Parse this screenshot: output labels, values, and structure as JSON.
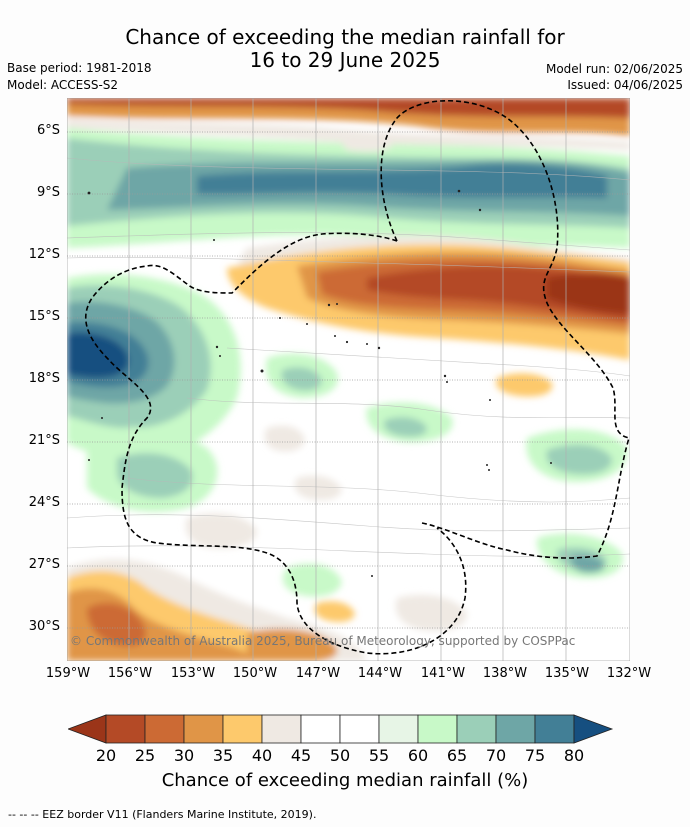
{
  "title": {
    "line1": "Chance of exceeding the median rainfall for",
    "line2": "16 to 29 June 2025"
  },
  "meta": {
    "base_period": "Base period: 1981-2018",
    "model": "Model: ACCESS-S2",
    "model_run": "Model run: 02/06/2025",
    "issued": "Issued: 04/06/2025"
  },
  "map": {
    "lat_labels": [
      "6°S",
      "9°S",
      "12°S",
      "15°S",
      "18°S",
      "21°S",
      "24°S",
      "27°S",
      "30°S"
    ],
    "lon_labels": [
      "159°W",
      "156°W",
      "153°W",
      "150°W",
      "147°W",
      "144°W",
      "141°W",
      "138°W",
      "135°W",
      "132°W"
    ],
    "credit": "© Commonwealth of Australia 2025, Bureau of Meteorology, supported by COSPPac"
  },
  "colorbar": {
    "ticks": [
      "20",
      "25",
      "30",
      "35",
      "40",
      "45",
      "50",
      "55",
      "60",
      "65",
      "70",
      "75",
      "80"
    ],
    "colors": [
      "#9b3519",
      "#b44a26",
      "#cc6a34",
      "#e09547",
      "#fdc96c",
      "#efe9e3",
      "#ffffff",
      "#ffffff",
      "#e7f5e6",
      "#c8f9c8",
      "#9bcfb8",
      "#6ea6a6",
      "#427f96",
      "#164f80"
    ],
    "label": "Chance of exceeding median rainfall (%)"
  },
  "footer": "--  --  -- EEZ border V11 (Flanders Marine Institute, 2019)."
}
